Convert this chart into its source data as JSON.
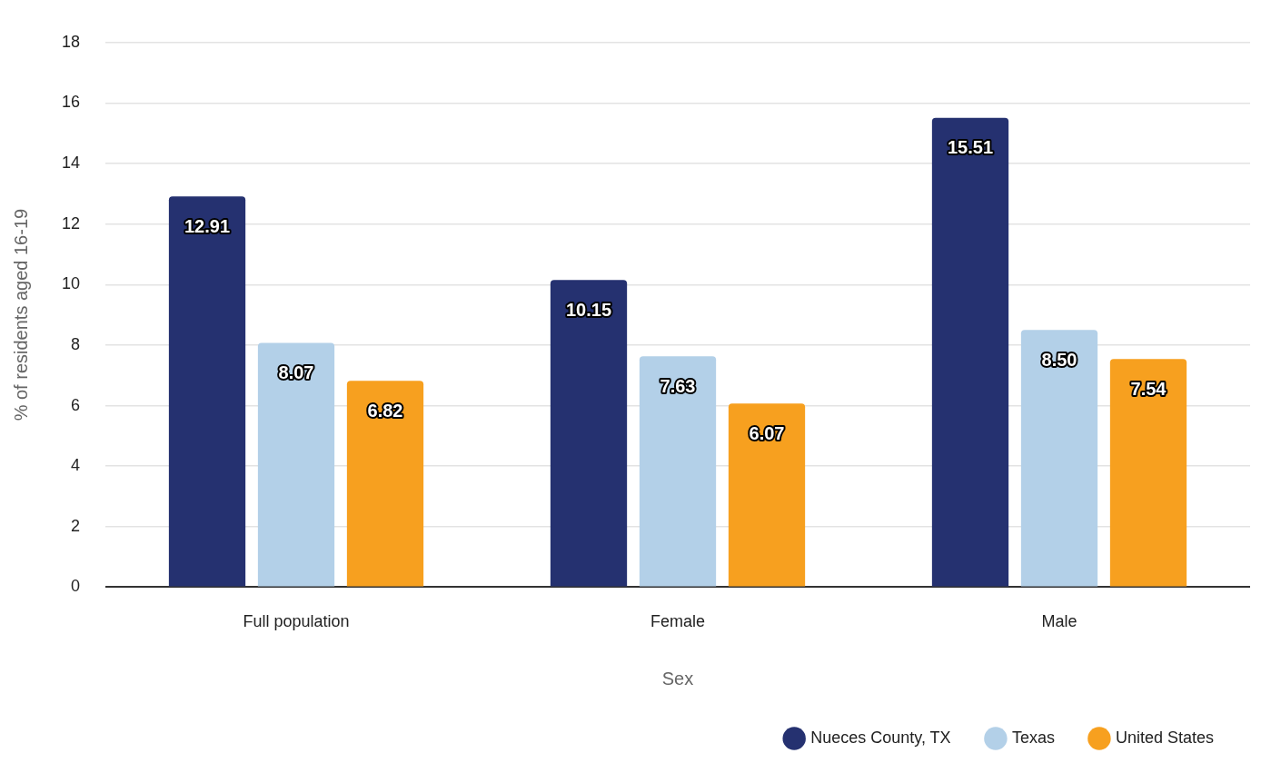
{
  "chart_data": {
    "type": "bar",
    "xlabel": "Sex",
    "ylabel": "% of residents aged 16-19",
    "categories": [
      "Full population",
      "Female",
      "Male"
    ],
    "series": [
      {
        "name": "Nueces County, TX",
        "color": "#253170",
        "values": [
          12.91,
          10.15,
          15.51
        ],
        "value_labels": [
          "12.91",
          "10.15",
          "15.51"
        ]
      },
      {
        "name": "Texas",
        "color": "#b3d0e8",
        "values": [
          8.07,
          7.63,
          8.5
        ],
        "value_labels": [
          "8.07",
          "7.63",
          "8.50"
        ]
      },
      {
        "name": "United States",
        "color": "#f7a01f",
        "values": [
          6.82,
          6.07,
          7.54
        ],
        "value_labels": [
          "6.82",
          "6.07",
          "7.54"
        ]
      }
    ],
    "ylim": [
      0,
      18
    ],
    "yticks": [
      0,
      2,
      4,
      6,
      8,
      10,
      12,
      14,
      16,
      18
    ],
    "grid": "y",
    "legend": "bottom right"
  }
}
